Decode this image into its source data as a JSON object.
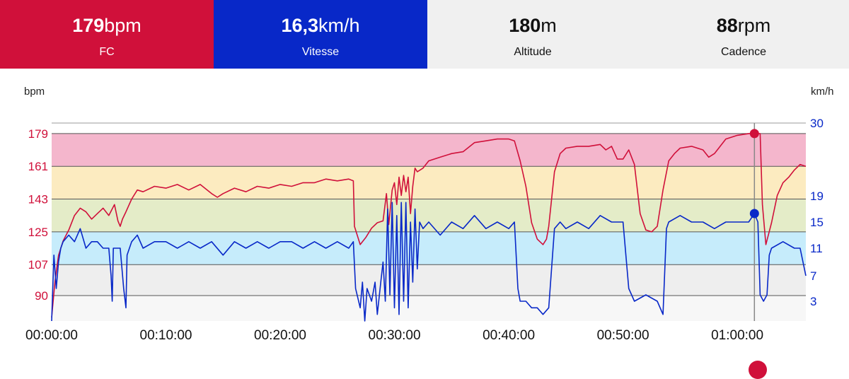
{
  "header": {
    "tiles": [
      {
        "value": "179",
        "unit": "bpm",
        "label": "FC",
        "color": "#d0103a"
      },
      {
        "value": "16,3",
        "unit": "km/h",
        "label": "Vitesse",
        "color": "#0828c8"
      },
      {
        "value": "180",
        "unit": "m",
        "label": "Altitude",
        "color": "#f0f0f0"
      },
      {
        "value": "88",
        "unit": "rpm",
        "label": "Cadence",
        "color": "#f0f0f0"
      }
    ]
  },
  "chart_data": {
    "type": "line",
    "left_axis": {
      "unit": "bpm",
      "ticks": [
        90,
        107,
        125,
        143,
        161,
        179
      ],
      "range": [
        76,
        184
      ],
      "color": "#d0103a"
    },
    "right_axis": {
      "unit": "km/h",
      "ticks": [
        3,
        7,
        11,
        15,
        19,
        30
      ],
      "color": "#0828c8"
    },
    "x_ticks": [
      "00:00:00",
      "00:10:00",
      "00:20:00",
      "00:30:00",
      "00:40:00",
      "00:50:00",
      "01:00:00"
    ],
    "x_range_min": [
      0,
      66
    ],
    "zones": [
      {
        "from": 76,
        "to": 90,
        "color": "#f7f7f7"
      },
      {
        "from": 90,
        "to": 107,
        "color": "#eeeeee"
      },
      {
        "from": 107,
        "to": 125,
        "color": "#c6ecfb"
      },
      {
        "from": 125,
        "to": 143,
        "color": "#e4ecc8"
      },
      {
        "from": 143,
        "to": 161,
        "color": "#fcebc0"
      },
      {
        "from": 161,
        "to": 179,
        "color": "#f4b6cc"
      }
    ],
    "cursor": {
      "time_min": 61.5,
      "hr": 179,
      "speed": 16.3
    },
    "series": [
      {
        "key": "hr",
        "color": "#d0103a",
        "points": [
          [
            0,
            78
          ],
          [
            0.3,
            98
          ],
          [
            0.6,
            112
          ],
          [
            1,
            120
          ],
          [
            1.5,
            126
          ],
          [
            2,
            134
          ],
          [
            2.5,
            138
          ],
          [
            3,
            136
          ],
          [
            3.5,
            132
          ],
          [
            4,
            135
          ],
          [
            4.5,
            138
          ],
          [
            5,
            134
          ],
          [
            5.5,
            140
          ],
          [
            5.8,
            131
          ],
          [
            6,
            128
          ],
          [
            6.2,
            132
          ],
          [
            6.5,
            136
          ],
          [
            7,
            143
          ],
          [
            7.5,
            148
          ],
          [
            8,
            147
          ],
          [
            9,
            150
          ],
          [
            10,
            149
          ],
          [
            11,
            151
          ],
          [
            12,
            148
          ],
          [
            13,
            151
          ],
          [
            14,
            146
          ],
          [
            14.5,
            144
          ],
          [
            15,
            146
          ],
          [
            16,
            149
          ],
          [
            17,
            147
          ],
          [
            18,
            150
          ],
          [
            19,
            149
          ],
          [
            20,
            151
          ],
          [
            21,
            150
          ],
          [
            22,
            152
          ],
          [
            23,
            152
          ],
          [
            24,
            154
          ],
          [
            25,
            153
          ],
          [
            26,
            154
          ],
          [
            26.4,
            153
          ],
          [
            26.5,
            128
          ],
          [
            27,
            118
          ],
          [
            27.5,
            122
          ],
          [
            28,
            127
          ],
          [
            28.5,
            130
          ],
          [
            29,
            131
          ],
          [
            29.3,
            146
          ],
          [
            29.5,
            129
          ],
          [
            29.8,
            148
          ],
          [
            30,
            152
          ],
          [
            30.2,
            140
          ],
          [
            30.4,
            155
          ],
          [
            30.6,
            145
          ],
          [
            30.8,
            156
          ],
          [
            31,
            147
          ],
          [
            31.2,
            155
          ],
          [
            31.4,
            135
          ],
          [
            31.6,
            150
          ],
          [
            31.8,
            160
          ],
          [
            32,
            158
          ],
          [
            32.5,
            160
          ],
          [
            33,
            164
          ],
          [
            34,
            166
          ],
          [
            35,
            168
          ],
          [
            36,
            169
          ],
          [
            37,
            174
          ],
          [
            38,
            175
          ],
          [
            39,
            176
          ],
          [
            40,
            176
          ],
          [
            40.5,
            175
          ],
          [
            41,
            164
          ],
          [
            41.5,
            150
          ],
          [
            42,
            130
          ],
          [
            42.5,
            121
          ],
          [
            43,
            118
          ],
          [
            43.3,
            121
          ],
          [
            43.5,
            128
          ],
          [
            44,
            158
          ],
          [
            44.5,
            168
          ],
          [
            45,
            171
          ],
          [
            46,
            172
          ],
          [
            47,
            172
          ],
          [
            48,
            173
          ],
          [
            48.5,
            170
          ],
          [
            49,
            172
          ],
          [
            49.5,
            165
          ],
          [
            50,
            165
          ],
          [
            50.5,
            170
          ],
          [
            51,
            162
          ],
          [
            51.5,
            135
          ],
          [
            52,
            126
          ],
          [
            52.5,
            125
          ],
          [
            53,
            128
          ],
          [
            53.5,
            148
          ],
          [
            54,
            164
          ],
          [
            54.5,
            168
          ],
          [
            55,
            171
          ],
          [
            56,
            172
          ],
          [
            57,
            170
          ],
          [
            57.5,
            166
          ],
          [
            58,
            168
          ],
          [
            58.5,
            172
          ],
          [
            59,
            176
          ],
          [
            60,
            178
          ],
          [
            61,
            179
          ],
          [
            61.5,
            179
          ],
          [
            62,
            179
          ],
          [
            62.2,
            140
          ],
          [
            62.5,
            118
          ],
          [
            63,
            130
          ],
          [
            63.5,
            145
          ],
          [
            64,
            152
          ],
          [
            64.5,
            155
          ],
          [
            65,
            159
          ],
          [
            65.5,
            162
          ],
          [
            66,
            161
          ]
        ]
      },
      {
        "key": "speed",
        "color": "#0828c8",
        "points": [
          [
            0,
            0
          ],
          [
            0.2,
            10
          ],
          [
            0.4,
            5
          ],
          [
            0.6,
            9
          ],
          [
            0.8,
            11
          ],
          [
            1,
            12
          ],
          [
            1.5,
            13
          ],
          [
            2,
            12
          ],
          [
            2.5,
            14
          ],
          [
            3,
            11
          ],
          [
            3.5,
            12
          ],
          [
            4,
            12
          ],
          [
            4.5,
            11
          ],
          [
            5,
            11
          ],
          [
            5.2,
            7
          ],
          [
            5.3,
            3
          ],
          [
            5.4,
            11
          ],
          [
            6,
            11
          ],
          [
            6.3,
            5
          ],
          [
            6.5,
            2
          ],
          [
            6.6,
            10
          ],
          [
            7,
            12
          ],
          [
            7.5,
            13
          ],
          [
            8,
            11
          ],
          [
            9,
            12
          ],
          [
            10,
            12
          ],
          [
            11,
            11
          ],
          [
            12,
            12
          ],
          [
            13,
            11
          ],
          [
            14,
            12
          ],
          [
            15,
            10
          ],
          [
            16,
            12
          ],
          [
            17,
            11
          ],
          [
            18,
            12
          ],
          [
            19,
            11
          ],
          [
            20,
            12
          ],
          [
            21,
            12
          ],
          [
            22,
            11
          ],
          [
            23,
            12
          ],
          [
            24,
            11
          ],
          [
            25,
            12
          ],
          [
            26,
            11
          ],
          [
            26.4,
            12
          ],
          [
            26.6,
            5
          ],
          [
            27,
            2
          ],
          [
            27.2,
            6
          ],
          [
            27.4,
            0
          ],
          [
            27.6,
            5
          ],
          [
            28,
            3
          ],
          [
            28.3,
            6
          ],
          [
            28.5,
            1
          ],
          [
            28.8,
            6
          ],
          [
            29,
            9
          ],
          [
            29.2,
            3
          ],
          [
            29.4,
            17
          ],
          [
            29.6,
            4
          ],
          [
            29.8,
            18
          ],
          [
            30,
            2
          ],
          [
            30.2,
            16
          ],
          [
            30.4,
            1
          ],
          [
            30.6,
            18
          ],
          [
            30.8,
            3
          ],
          [
            31,
            18
          ],
          [
            31.2,
            2
          ],
          [
            31.4,
            15
          ],
          [
            31.6,
            6
          ],
          [
            31.8,
            17
          ],
          [
            32,
            8
          ],
          [
            32.2,
            15
          ],
          [
            32.5,
            14
          ],
          [
            33,
            15
          ],
          [
            34,
            13
          ],
          [
            35,
            15
          ],
          [
            36,
            14
          ],
          [
            37,
            16
          ],
          [
            38,
            14
          ],
          [
            39,
            15
          ],
          [
            40,
            14
          ],
          [
            40.5,
            15
          ],
          [
            40.8,
            5
          ],
          [
            41,
            3
          ],
          [
            41.5,
            3
          ],
          [
            42,
            2
          ],
          [
            42.5,
            2
          ],
          [
            43,
            1
          ],
          [
            43.5,
            2
          ],
          [
            44,
            14
          ],
          [
            44.5,
            15
          ],
          [
            45,
            14
          ],
          [
            46,
            15
          ],
          [
            47,
            14
          ],
          [
            48,
            16
          ],
          [
            49,
            15
          ],
          [
            50,
            15
          ],
          [
            50.5,
            5
          ],
          [
            51,
            3
          ],
          [
            52,
            4
          ],
          [
            53,
            3
          ],
          [
            53.5,
            1
          ],
          [
            53.8,
            14
          ],
          [
            54,
            15
          ],
          [
            55,
            16
          ],
          [
            56,
            15
          ],
          [
            57,
            15
          ],
          [
            58,
            14
          ],
          [
            59,
            15
          ],
          [
            60,
            15
          ],
          [
            61,
            15
          ],
          [
            61.5,
            16.3
          ],
          [
            61.8,
            15
          ],
          [
            62,
            4
          ],
          [
            62.3,
            3
          ],
          [
            62.6,
            4
          ],
          [
            62.8,
            10
          ],
          [
            63,
            11
          ],
          [
            64,
            12
          ],
          [
            65,
            11
          ],
          [
            65.5,
            11
          ],
          [
            66,
            7
          ]
        ]
      }
    ]
  }
}
